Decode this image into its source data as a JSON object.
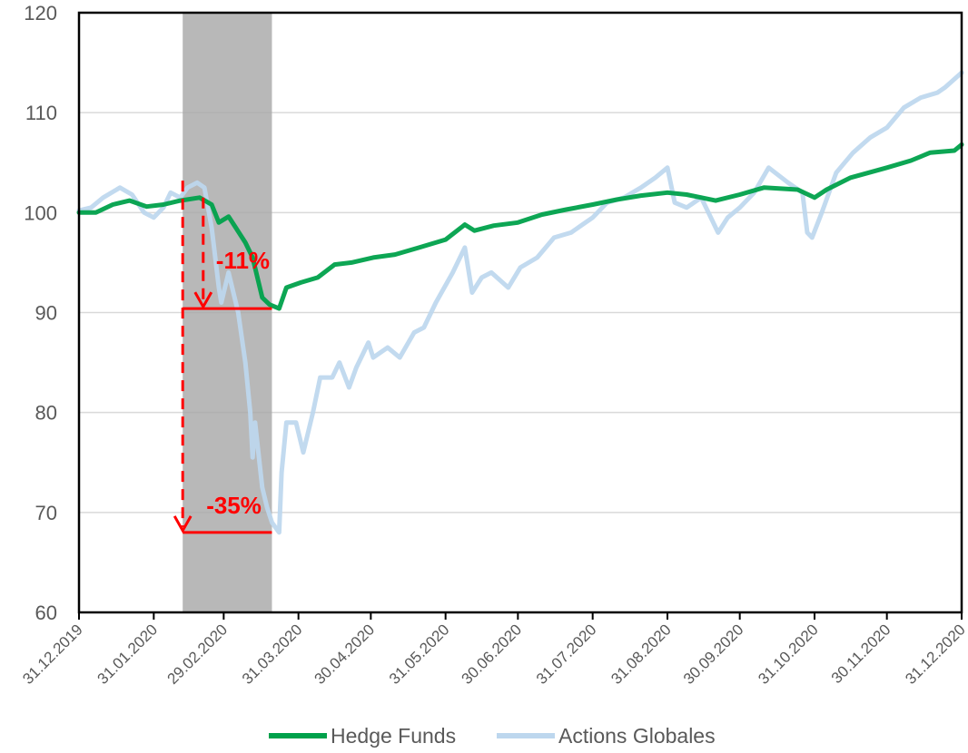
{
  "chart_data": {
    "type": "line",
    "title": "",
    "xlabel": "",
    "ylabel": "",
    "ylim": [
      60,
      120
    ],
    "yticks": [
      60,
      70,
      80,
      90,
      100,
      110,
      120
    ],
    "x_tick_labels": [
      "31.12.2019",
      "31.01.2020",
      "29.02.2020",
      "31.03.2020",
      "30.04.2020",
      "31.05.2020",
      "30.06.2020",
      "31.07.2020",
      "31.08.2020",
      "30.09.2020",
      "31.10.2020",
      "30.11.2020",
      "31.12.2020"
    ],
    "grid": "horizontal",
    "legend_position": "bottom",
    "shaded_region": {
      "start": "2020-02-12",
      "end": "2020-03-20"
    },
    "colors": {
      "hedge_funds": "#00a14b",
      "actions_globales": "#bdd7ee",
      "shade": "#a6a6a6",
      "annotation": "#ff0000"
    },
    "series": [
      {
        "name": "Hedge Funds",
        "points": [
          [
            "2019-12-31",
            100
          ],
          [
            "2020-01-07",
            100
          ],
          [
            "2020-01-14",
            100.8
          ],
          [
            "2020-01-21",
            101.2
          ],
          [
            "2020-01-28",
            100.6
          ],
          [
            "2020-02-04",
            100.8
          ],
          [
            "2020-02-11",
            101.2
          ],
          [
            "2020-02-19",
            101.5
          ],
          [
            "2020-02-24",
            100.8
          ],
          [
            "2020-02-27",
            99
          ],
          [
            "2020-03-02",
            99.6
          ],
          [
            "2020-03-05",
            98.5
          ],
          [
            "2020-03-09",
            97
          ],
          [
            "2020-03-12",
            95.5
          ],
          [
            "2020-03-16",
            91.5
          ],
          [
            "2020-03-19",
            90.8
          ],
          [
            "2020-03-23",
            90.4
          ],
          [
            "2020-03-26",
            92.5
          ],
          [
            "2020-04-01",
            93
          ],
          [
            "2020-04-08",
            93.5
          ],
          [
            "2020-04-15",
            94.8
          ],
          [
            "2020-04-22",
            95
          ],
          [
            "2020-05-01",
            95.5
          ],
          [
            "2020-05-10",
            95.8
          ],
          [
            "2020-05-20",
            96.5
          ],
          [
            "2020-05-31",
            97.3
          ],
          [
            "2020-06-08",
            98.8
          ],
          [
            "2020-06-12",
            98.2
          ],
          [
            "2020-06-20",
            98.7
          ],
          [
            "2020-06-30",
            99
          ],
          [
            "2020-07-10",
            99.8
          ],
          [
            "2020-07-20",
            100.3
          ],
          [
            "2020-07-31",
            100.8
          ],
          [
            "2020-08-10",
            101.3
          ],
          [
            "2020-08-20",
            101.7
          ],
          [
            "2020-08-31",
            102
          ],
          [
            "2020-09-08",
            101.8
          ],
          [
            "2020-09-20",
            101.2
          ],
          [
            "2020-09-30",
            101.8
          ],
          [
            "2020-10-10",
            102.5
          ],
          [
            "2020-10-24",
            102.3
          ],
          [
            "2020-10-31",
            101.5
          ],
          [
            "2020-11-05",
            102.3
          ],
          [
            "2020-11-15",
            103.5
          ],
          [
            "2020-11-30",
            104.5
          ],
          [
            "2020-12-10",
            105.2
          ],
          [
            "2020-12-18",
            106
          ],
          [
            "2020-12-28",
            106.2
          ],
          [
            "2020-12-31",
            106.8
          ]
        ]
      },
      {
        "name": "Actions Globales",
        "points": [
          [
            "2019-12-31",
            100.2
          ],
          [
            "2020-01-05",
            100.5
          ],
          [
            "2020-01-10",
            101.5
          ],
          [
            "2020-01-17",
            102.5
          ],
          [
            "2020-01-22",
            101.8
          ],
          [
            "2020-01-27",
            100
          ],
          [
            "2020-01-31",
            99.5
          ],
          [
            "2020-02-04",
            100.5
          ],
          [
            "2020-02-07",
            102
          ],
          [
            "2020-02-11",
            101.5
          ],
          [
            "2020-02-14",
            102.5
          ],
          [
            "2020-02-18",
            103
          ],
          [
            "2020-02-21",
            102.5
          ],
          [
            "2020-02-24",
            98.5
          ],
          [
            "2020-02-27",
            92.5
          ],
          [
            "2020-02-28",
            91
          ],
          [
            "2020-03-02",
            94
          ],
          [
            "2020-03-04",
            92
          ],
          [
            "2020-03-06",
            90
          ],
          [
            "2020-03-09",
            85
          ],
          [
            "2020-03-11",
            80
          ],
          [
            "2020-03-12",
            75.5
          ],
          [
            "2020-03-13",
            79
          ],
          [
            "2020-03-16",
            72.5
          ],
          [
            "2020-03-18",
            70.5
          ],
          [
            "2020-03-20",
            69
          ],
          [
            "2020-03-23",
            68
          ],
          [
            "2020-03-24",
            74
          ],
          [
            "2020-03-26",
            79
          ],
          [
            "2020-03-30",
            79
          ],
          [
            "2020-04-02",
            76
          ],
          [
            "2020-04-06",
            80
          ],
          [
            "2020-04-09",
            83.5
          ],
          [
            "2020-04-14",
            83.5
          ],
          [
            "2020-04-17",
            85
          ],
          [
            "2020-04-21",
            82.5
          ],
          [
            "2020-04-24",
            84.5
          ],
          [
            "2020-04-29",
            87
          ],
          [
            "2020-05-01",
            85.5
          ],
          [
            "2020-05-07",
            86.5
          ],
          [
            "2020-05-12",
            85.5
          ],
          [
            "2020-05-18",
            88
          ],
          [
            "2020-05-22",
            88.5
          ],
          [
            "2020-05-27",
            91
          ],
          [
            "2020-06-03",
            94
          ],
          [
            "2020-06-08",
            96.5
          ],
          [
            "2020-06-11",
            92
          ],
          [
            "2020-06-15",
            93.5
          ],
          [
            "2020-06-19",
            94
          ],
          [
            "2020-06-26",
            92.5
          ],
          [
            "2020-07-01",
            94.5
          ],
          [
            "2020-07-08",
            95.5
          ],
          [
            "2020-07-15",
            97.5
          ],
          [
            "2020-07-22",
            98
          ],
          [
            "2020-07-28",
            99
          ],
          [
            "2020-07-31",
            99.5
          ],
          [
            "2020-08-06",
            101
          ],
          [
            "2020-08-13",
            101.5
          ],
          [
            "2020-08-20",
            102.5
          ],
          [
            "2020-08-26",
            103.5
          ],
          [
            "2020-08-31",
            104.5
          ],
          [
            "2020-09-03",
            101
          ],
          [
            "2020-09-08",
            100.5
          ],
          [
            "2020-09-14",
            101.5
          ],
          [
            "2020-09-21",
            98
          ],
          [
            "2020-09-25",
            99.5
          ],
          [
            "2020-09-30",
            100.5
          ],
          [
            "2020-10-06",
            102
          ],
          [
            "2020-10-12",
            104.5
          ],
          [
            "2020-10-20",
            103
          ],
          [
            "2020-10-26",
            102
          ],
          [
            "2020-10-28",
            98
          ],
          [
            "2020-10-30",
            97.5
          ],
          [
            "2020-11-03",
            100
          ],
          [
            "2020-11-09",
            104
          ],
          [
            "2020-11-16",
            106
          ],
          [
            "2020-11-23",
            107.5
          ],
          [
            "2020-11-30",
            108.5
          ],
          [
            "2020-12-07",
            110.5
          ],
          [
            "2020-12-14",
            111.5
          ],
          [
            "2020-12-21",
            112
          ],
          [
            "2020-12-24",
            112.5
          ],
          [
            "2020-12-31",
            114
          ]
        ]
      }
    ],
    "annotations": [
      {
        "label": "-11%",
        "from_date": "2020-02-19",
        "from_value": 101.5,
        "to_value": 90.4,
        "bar_start": "2020-02-12",
        "bar_end": "2020-03-20"
      },
      {
        "label": "-35%",
        "from_date": "2020-02-12",
        "from_value": 103.2,
        "to_value": 68,
        "bar_start": "2020-02-12",
        "bar_end": "2020-03-20"
      }
    ]
  }
}
